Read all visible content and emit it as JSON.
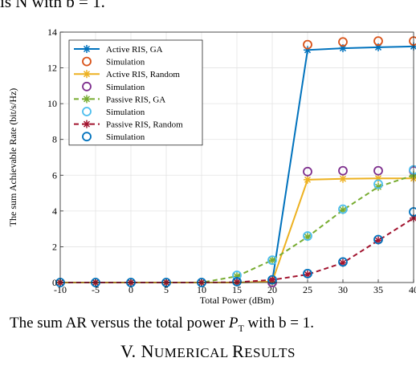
{
  "page": {
    "top_fragment": "is N with b = 1.",
    "caption": "The sum AR versus the total power P_T with b = 1.",
    "caption_parts": {
      "before": "The sum AR versus the total power ",
      "var": "P",
      "sub": "T",
      "after": " with b = 1."
    },
    "section": {
      "number": "V.",
      "first": "N",
      "rest1": "UMERICAL ",
      "second": "R",
      "rest2": "ESULTS"
    }
  },
  "chart_data": {
    "type": "line",
    "title": "",
    "xlabel": "Total Power (dBm)",
    "ylabel": "The sum Achievable Rate (bit/s/Hz)",
    "xlim": [
      -10,
      40
    ],
    "ylim": [
      0,
      14
    ],
    "xticks": [
      -10,
      -5,
      0,
      5,
      10,
      15,
      20,
      25,
      30,
      35,
      40
    ],
    "yticks": [
      0,
      2,
      4,
      6,
      8,
      10,
      12,
      14
    ],
    "grid": true,
    "legend_position": "top-left",
    "x": [
      -10,
      -5,
      0,
      5,
      10,
      15,
      20,
      25,
      30,
      35,
      40
    ],
    "series": [
      {
        "name": "Active RIS, GA",
        "style": "solid-line-star",
        "color": "#0072BD",
        "values": [
          0,
          0,
          0,
          0,
          0,
          0,
          0.05,
          13.0,
          13.1,
          13.15,
          13.2
        ]
      },
      {
        "name": "Simulation",
        "style": "circle",
        "color": "#D95319",
        "values": [
          null,
          null,
          null,
          null,
          null,
          null,
          null,
          13.3,
          13.45,
          13.5,
          13.5
        ]
      },
      {
        "name": "Active RIS, Random",
        "style": "solid-line-star",
        "color": "#EDB120",
        "values": [
          0,
          0,
          0,
          0,
          0,
          0,
          0.05,
          5.75,
          5.8,
          5.82,
          5.82
        ]
      },
      {
        "name": "Simulation",
        "style": "circle",
        "color": "#7E2F8E",
        "values": [
          null,
          null,
          null,
          null,
          null,
          null,
          0,
          6.2,
          6.25,
          6.25,
          6.25
        ]
      },
      {
        "name": "Passive RIS, GA",
        "style": "dashed-line-star",
        "color": "#77AC30",
        "values": [
          0,
          0,
          0,
          0,
          0,
          0.35,
          1.25,
          2.55,
          4.05,
          5.35,
          6.0
        ]
      },
      {
        "name": "Simulation",
        "style": "circle",
        "color": "#4DBEEE",
        "values": [
          null,
          null,
          null,
          null,
          null,
          0.4,
          1.25,
          2.6,
          4.1,
          5.5,
          6.3
        ]
      },
      {
        "name": "Passive RIS, Random",
        "style": "dashed-line-star",
        "color": "#A2142F",
        "values": [
          0,
          0,
          0,
          0,
          0,
          0.02,
          0.15,
          0.45,
          1.1,
          2.35,
          3.6
        ]
      },
      {
        "name": "Simulation",
        "style": "circle",
        "color": "#0072BD",
        "values": [
          0,
          0,
          0,
          0,
          0,
          0.05,
          0.15,
          0.5,
          1.15,
          2.4,
          3.95
        ]
      }
    ]
  }
}
